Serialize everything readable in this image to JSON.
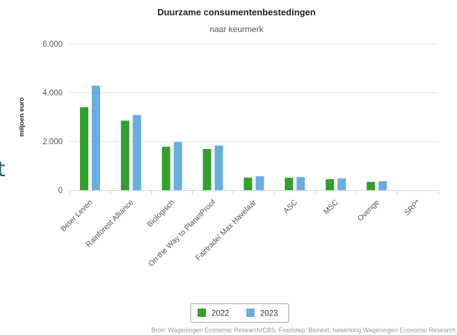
{
  "page_edge_text": "t",
  "chart_data": {
    "type": "bar",
    "title": "Duurzame consumentenbestedingen",
    "subtitle": "naar keurmerk",
    "xlabel": "",
    "ylabel": "miljoen euro",
    "ylim": [
      0,
      6000
    ],
    "yticks": [
      0,
      2000,
      4000,
      6000
    ],
    "ytick_labels": [
      "0",
      "2.000",
      "4.000",
      "6.000"
    ],
    "grid": true,
    "legend_position": "bottom-center",
    "categories": [
      "Beter Leven",
      "Rainforest Alliance",
      "Biologisch",
      "On the Way to PlanetProof",
      "Fairtrade/ Max Havelaar",
      "ASC",
      "MSC",
      "Overige",
      "SRP*"
    ],
    "series": [
      {
        "name": "2022",
        "color": "#33a02c",
        "values": [
          3400,
          2850,
          1780,
          1690,
          510,
          510,
          450,
          340,
          0
        ]
      },
      {
        "name": "2023",
        "color": "#6aaee0",
        "values": [
          4280,
          3080,
          1980,
          1830,
          570,
          540,
          480,
          370,
          0
        ]
      }
    ],
    "source": "Bron: Wageningen Economic Research/CBS, Foodstep, Bionext, bewerking Wageningen Economic Research"
  }
}
